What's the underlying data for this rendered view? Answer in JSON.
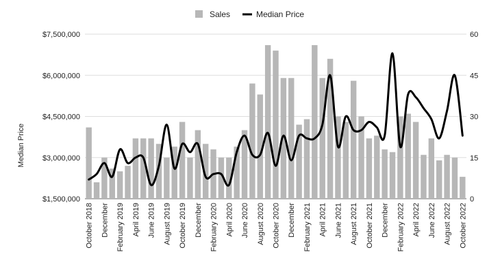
{
  "chart_data": {
    "type": "bar+line",
    "legend": {
      "position": "top",
      "items": [
        {
          "label": "Sales",
          "color": "#b7b7b7",
          "shape": "square"
        },
        {
          "label": "Median Price",
          "color": "#000000",
          "shape": "line"
        }
      ]
    },
    "y_left": {
      "label": "Median Price",
      "min": 1500000,
      "max": 7500000,
      "ticks": [
        1500000,
        3000000,
        4500000,
        6000000,
        7500000
      ],
      "tick_labels": [
        "$1,500,000",
        "$3,000,000",
        "$4,500,000",
        "$6,000,000",
        "$7,500,000"
      ]
    },
    "y_right": {
      "label": "",
      "min": 0,
      "max": 60,
      "ticks": [
        0,
        15,
        30,
        45,
        60
      ],
      "tick_labels": [
        "0",
        "15",
        "30",
        "45",
        "60"
      ]
    },
    "grid": true,
    "x_labels": [
      {
        "index": 0,
        "text": "October 2018"
      },
      {
        "index": 2,
        "text": "December"
      },
      {
        "index": 4,
        "text": "February 2019"
      },
      {
        "index": 6,
        "text": "April 2019"
      },
      {
        "index": 8,
        "text": "June 2019"
      },
      {
        "index": 10,
        "text": "August 2019"
      },
      {
        "index": 12,
        "text": "October 2019"
      },
      {
        "index": 14,
        "text": "December"
      },
      {
        "index": 16,
        "text": "February 2020"
      },
      {
        "index": 18,
        "text": "April 2020"
      },
      {
        "index": 20,
        "text": "June 2020"
      },
      {
        "index": 22,
        "text": "August 2020"
      },
      {
        "index": 24,
        "text": "October 2020"
      },
      {
        "index": 26,
        "text": "December"
      },
      {
        "index": 28,
        "text": "February 2021"
      },
      {
        "index": 30,
        "text": "April 2021"
      },
      {
        "index": 32,
        "text": "June 2021"
      },
      {
        "index": 34,
        "text": "August 2021"
      },
      {
        "index": 36,
        "text": "October 2021"
      },
      {
        "index": 38,
        "text": "December"
      },
      {
        "index": 40,
        "text": "February 2022"
      },
      {
        "index": 42,
        "text": "April 2022"
      },
      {
        "index": 44,
        "text": "June 2022"
      },
      {
        "index": 46,
        "text": "August 2022"
      },
      {
        "index": 48,
        "text": "October 2022"
      }
    ],
    "series": [
      {
        "name": "Sales",
        "axis": "right",
        "color": "#b7b7b7",
        "values": [
          26,
          6,
          15,
          11,
          10,
          12,
          22,
          22,
          22,
          20,
          15,
          19,
          28,
          15,
          25,
          20,
          18,
          15,
          15,
          19,
          25,
          42,
          38,
          56,
          54,
          44,
          44,
          27,
          29,
          56,
          44,
          51,
          30,
          28,
          43,
          30,
          22,
          23,
          18,
          17,
          30,
          31,
          28,
          16,
          22,
          14,
          16,
          15,
          8
        ]
      },
      {
        "name": "Median Price",
        "axis": "left",
        "color": "#000000",
        "values": [
          2200000,
          2400000,
          2800000,
          2300000,
          3300000,
          2800000,
          3000000,
          3000000,
          2000000,
          2700000,
          4200000,
          2600000,
          3500000,
          3200000,
          3500000,
          2300000,
          2400000,
          2400000,
          2000000,
          3200000,
          3800000,
          3100000,
          3100000,
          3900000,
          2700000,
          3800000,
          2900000,
          3800000,
          3700000,
          3700000,
          4200000,
          6000000,
          3400000,
          4500000,
          4000000,
          4000000,
          4300000,
          4100000,
          3800000,
          6800000,
          3400000,
          5300000,
          5200000,
          4800000,
          4400000,
          3700000,
          4700000,
          6000000,
          3800000
        ]
      }
    ]
  }
}
